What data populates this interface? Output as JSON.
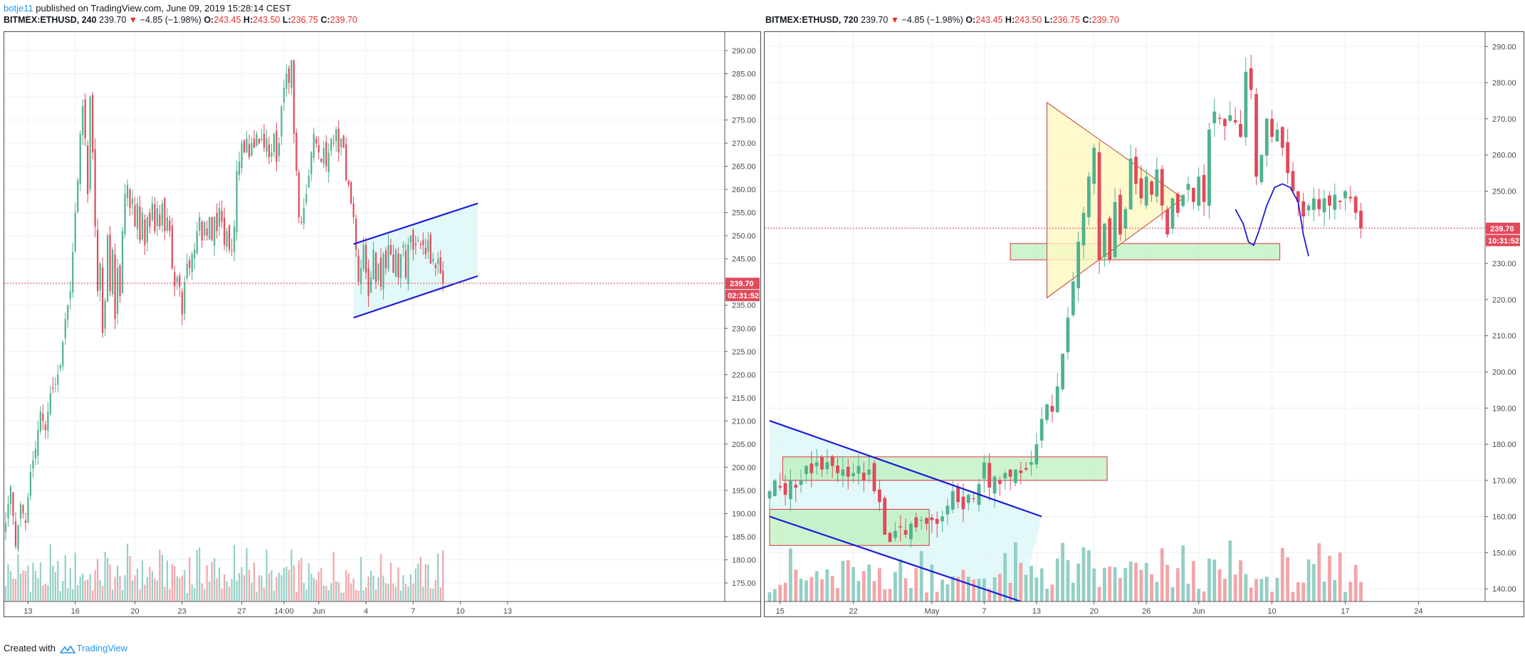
{
  "header": {
    "author": "botje11",
    "published_text": " published on TradingView.com, June 09, 2019 15:28:14 CEST"
  },
  "left_title": {
    "symbol": "BITMEX:ETHUSD, 240",
    "last": "239.70",
    "arrow": "▼",
    "change": "−4.85 (−1.98%)",
    "o_label": "O:",
    "o": "243.45",
    "h_label": "H:",
    "h": "243.50",
    "l_label": "L:",
    "l": "236.75",
    "c_label": "C:",
    "c": "239.70"
  },
  "right_title": {
    "symbol": "BITMEX:ETHUSD, 720",
    "last": "239.70",
    "arrow": "▼",
    "change": "−4.85 (−1.98%)",
    "o_label": "O:",
    "o": "243.45",
    "h_label": "H:",
    "h": "243.50",
    "l_label": "L:",
    "l": "236.75",
    "c_label": "C:",
    "c": "239.70"
  },
  "footer": {
    "created_with": "Created with",
    "brand": "TradingView"
  },
  "colors": {
    "up": "#4fb28f",
    "down": "#e2495a",
    "vol_up": "#93cfc5",
    "vol_down": "#f3a5a8",
    "drawing_blue": "#1c1cd6",
    "price_tag": "#e2495a",
    "grid": "#eef0f3"
  },
  "chart_data": [
    {
      "type": "candlestick",
      "symbol": "BITMEX:ETHUSD",
      "interval": "240",
      "ylim": [
        171,
        294
      ],
      "y_ticks": [
        "290.00",
        "285.00",
        "280.00",
        "275.00",
        "270.00",
        "265.00",
        "260.00",
        "255.00",
        "250.00",
        "245.00",
        "240.00",
        "235.00",
        "230.00",
        "225.00",
        "220.00",
        "215.00",
        "210.00",
        "205.00",
        "200.00",
        "195.00",
        "190.00",
        "185.00",
        "180.00",
        "175.00"
      ],
      "y_tick_values": [
        290,
        285,
        280,
        275,
        270,
        265,
        260,
        255,
        250,
        245,
        240,
        235,
        230,
        225,
        220,
        215,
        210,
        205,
        200,
        195,
        190,
        185,
        180,
        175
      ],
      "x_ticks": [
        "13",
        "16",
        "20",
        "23",
        "27",
        "14:00",
        "Jun",
        "4",
        "7",
        "10",
        "13"
      ],
      "x_tick_index": [
        9,
        28,
        52,
        71,
        95,
        112,
        126,
        145,
        164,
        183,
        202
      ],
      "last_price_label": "239.70",
      "countdown_label": "02:31:52",
      "last_price": 239.7,
      "trendlines": [
        {
          "x1": 140,
          "y1": 248.2,
          "x2": 190,
          "y2": 257
        },
        {
          "x1": 140,
          "y1": 232.3,
          "x2": 190,
          "y2": 241.3
        }
      ],
      "channel_fill": {
        "x1": 140,
        "x2": 190
      },
      "ohlc_anchors": [
        [
          0,
          188
        ],
        [
          2,
          196
        ],
        [
          4,
          183
        ],
        [
          6,
          192
        ],
        [
          8,
          188
        ],
        [
          10,
          199
        ],
        [
          12,
          204
        ],
        [
          14,
          212
        ],
        [
          16,
          208
        ],
        [
          18,
          216
        ],
        [
          20,
          218
        ],
        [
          22,
          222
        ],
        [
          24,
          232
        ],
        [
          26,
          238
        ],
        [
          28,
          255
        ],
        [
          29,
          262
        ],
        [
          30,
          272
        ],
        [
          31,
          278
        ],
        [
          32,
          271
        ],
        [
          33,
          259
        ],
        [
          34,
          280
        ],
        [
          35,
          268
        ],
        [
          36,
          252
        ],
        [
          37,
          238
        ],
        [
          38,
          244
        ],
        [
          39,
          229
        ],
        [
          40,
          236
        ],
        [
          41,
          250
        ],
        [
          42,
          238
        ],
        [
          43,
          247
        ],
        [
          44,
          232
        ],
        [
          45,
          243
        ],
        [
          46,
          237
        ],
        [
          47,
          251
        ],
        [
          48,
          259
        ],
        [
          49,
          261
        ],
        [
          50,
          256
        ],
        [
          51,
          258
        ],
        [
          52,
          252
        ],
        [
          53,
          257
        ],
        [
          54,
          249
        ],
        [
          55,
          255
        ],
        [
          56,
          248
        ],
        [
          57,
          254
        ],
        [
          58,
          252
        ],
        [
          59,
          257
        ],
        [
          60,
          251
        ],
        [
          61,
          256
        ],
        [
          62,
          252
        ],
        [
          63,
          257
        ],
        [
          64,
          251
        ],
        [
          65,
          254
        ],
        [
          66,
          251
        ],
        [
          67,
          243
        ],
        [
          68,
          239
        ],
        [
          69,
          241
        ],
        [
          70,
          239
        ],
        [
          71,
          233
        ],
        [
          72,
          240
        ],
        [
          73,
          244
        ],
        [
          74,
          243
        ],
        [
          75,
          246
        ],
        [
          76,
          247
        ],
        [
          77,
          251
        ],
        [
          78,
          254
        ],
        [
          79,
          249
        ],
        [
          80,
          253
        ],
        [
          81,
          250
        ],
        [
          82,
          254
        ],
        [
          83,
          249
        ],
        [
          84,
          254
        ],
        [
          85,
          251
        ],
        [
          86,
          256
        ],
        [
          87,
          253
        ],
        [
          88,
          248
        ],
        [
          89,
          251
        ],
        [
          90,
          247
        ],
        [
          91,
          247
        ],
        [
          92,
          252
        ],
        [
          93,
          264
        ],
        [
          94,
          266
        ],
        [
          95,
          270
        ],
        [
          96,
          268
        ],
        [
          97,
          271
        ],
        [
          98,
          267
        ],
        [
          99,
          270
        ],
        [
          100,
          269
        ],
        [
          101,
          272
        ],
        [
          102,
          270
        ],
        [
          103,
          271
        ],
        [
          104,
          269
        ],
        [
          105,
          271
        ],
        [
          106,
          267
        ],
        [
          107,
          268
        ],
        [
          108,
          272
        ],
        [
          109,
          266
        ],
        [
          110,
          270
        ],
        [
          111,
          278
        ],
        [
          112,
          282
        ],
        [
          113,
          285
        ],
        [
          114,
          283
        ],
        [
          115,
          288
        ],
        [
          116,
          272
        ],
        [
          117,
          264
        ],
        [
          118,
          254
        ],
        [
          119,
          253
        ],
        [
          120,
          256
        ],
        [
          121,
          259
        ],
        [
          122,
          263
        ],
        [
          123,
          268
        ],
        [
          124,
          272
        ],
        [
          125,
          270
        ],
        [
          126,
          268
        ],
        [
          127,
          266
        ],
        [
          128,
          269
        ],
        [
          129,
          265
        ],
        [
          130,
          268
        ],
        [
          131,
          271
        ],
        [
          132,
          270
        ],
        [
          133,
          273
        ],
        [
          134,
          268
        ],
        [
          135,
          271
        ],
        [
          136,
          269
        ],
        [
          137,
          262
        ],
        [
          138,
          261
        ],
        [
          139,
          257
        ],
        [
          140,
          254
        ],
        [
          141,
          247
        ],
        [
          142,
          240
        ],
        [
          143,
          243
        ],
        [
          144,
          248
        ],
        [
          145,
          242
        ],
        [
          146,
          237
        ],
        [
          147,
          241
        ],
        [
          148,
          247
        ],
        [
          149,
          240
        ],
        [
          150,
          244
        ],
        [
          151,
          239
        ],
        [
          152,
          246
        ],
        [
          153,
          243
        ],
        [
          154,
          248
        ],
        [
          155,
          246
        ],
        [
          156,
          242
        ],
        [
          157,
          247
        ],
        [
          158,
          241
        ],
        [
          159,
          246
        ],
        [
          160,
          248
        ],
        [
          161,
          241
        ],
        [
          162,
          248
        ],
        [
          163,
          250
        ],
        [
          164,
          247
        ],
        [
          165,
          248
        ],
        [
          166,
          249
        ],
        [
          167,
          248
        ],
        [
          168,
          248
        ],
        [
          169,
          246
        ],
        [
          170,
          249
        ],
        [
          171,
          244
        ],
        [
          172,
          245
        ],
        [
          173,
          243
        ],
        [
          174,
          245
        ],
        [
          175,
          242
        ],
        [
          176,
          239.7
        ]
      ]
    },
    {
      "type": "candlestick",
      "symbol": "BITMEX:ETHUSD",
      "interval": "720",
      "ylim": [
        136.5,
        294
      ],
      "y_ticks": [
        "290.00",
        "280.00",
        "270.00",
        "260.00",
        "250.00",
        "240.00",
        "230.00",
        "220.00",
        "210.00",
        "200.00",
        "190.00",
        "180.00",
        "170.00",
        "160.00",
        "150.00",
        "140.00"
      ],
      "y_tick_values": [
        290,
        280,
        270,
        260,
        250,
        240,
        230,
        220,
        210,
        200,
        190,
        180,
        170,
        160,
        150,
        140
      ],
      "x_ticks": [
        "15",
        "22",
        "May",
        "7",
        "13",
        "20",
        "26",
        "Jun",
        "10",
        "17",
        "24"
      ],
      "x_tick_index": [
        2,
        16,
        31,
        41,
        51,
        62,
        72,
        82,
        96,
        110,
        124
      ],
      "last_price_label": "239.70",
      "countdown_label": "10:31:52",
      "last_price": 239.7,
      "boxes": [
        {
          "x1": 2.5,
          "x2": 64.5,
          "y1": 170,
          "y2": 176.5
        },
        {
          "x1": 0,
          "x2": 30.5,
          "y1": 152,
          "y2": 162
        },
        {
          "x1": 46,
          "x2": 97.5,
          "y1": 231,
          "y2": 235.5
        }
      ],
      "triangle": [
        [
          53,
          274.5
        ],
        [
          79,
          248
        ],
        [
          53,
          220.5
        ]
      ],
      "trendlines": [
        {
          "x1": 0,
          "y1": 186.5,
          "x2": 52,
          "y2": 160
        },
        {
          "x1": 0,
          "y1": 160,
          "x2": 48,
          "y2": 136.5
        }
      ],
      "hand_drawn_projection": [
        [
          89,
          245
        ],
        [
          90.5,
          241
        ],
        [
          91.5,
          236
        ],
        [
          92.5,
          235
        ],
        [
          93.5,
          239
        ],
        [
          95,
          246
        ],
        [
          96.5,
          251
        ],
        [
          98,
          252
        ],
        [
          99.5,
          251
        ],
        [
          101,
          247
        ],
        [
          102,
          238
        ],
        [
          103,
          232
        ]
      ],
      "ohlc_anchors": [
        [
          0,
          167
        ],
        [
          1,
          170
        ],
        [
          2,
          168
        ],
        [
          3,
          166
        ],
        [
          4,
          170
        ],
        [
          5,
          168
        ],
        [
          6,
          170
        ],
        [
          7,
          174
        ],
        [
          8,
          172
        ],
        [
          9,
          175
        ],
        [
          10,
          173
        ],
        [
          11,
          175
        ],
        [
          12,
          174
        ],
        [
          13,
          172
        ],
        [
          14,
          173
        ],
        [
          15,
          171
        ],
        [
          16,
          172
        ],
        [
          17,
          174
        ],
        [
          18,
          170
        ],
        [
          19,
          173
        ],
        [
          20,
          167
        ],
        [
          21,
          164
        ],
        [
          22,
          155
        ],
        [
          23,
          153
        ],
        [
          24,
          156
        ],
        [
          25,
          157
        ],
        [
          26,
          155
        ],
        [
          27,
          158
        ],
        [
          28,
          157
        ],
        [
          29,
          159
        ],
        [
          30,
          158
        ],
        [
          31,
          159
        ],
        [
          32,
          158
        ],
        [
          33,
          160
        ],
        [
          34,
          163
        ],
        [
          35,
          167
        ],
        [
          36,
          164
        ],
        [
          37,
          162
        ],
        [
          38,
          166
        ],
        [
          39,
          165
        ],
        [
          40,
          169
        ],
        [
          41,
          175
        ],
        [
          42,
          168
        ],
        [
          43,
          171
        ],
        [
          44,
          169
        ],
        [
          45,
          172
        ],
        [
          46,
          171
        ],
        [
          47,
          173
        ],
        [
          48,
          172
        ],
        [
          49,
          173
        ],
        [
          50,
          175
        ],
        [
          51,
          180
        ],
        [
          52,
          187
        ],
        [
          53,
          191
        ],
        [
          54,
          189
        ],
        [
          55,
          196
        ],
        [
          56,
          205
        ],
        [
          57,
          215
        ],
        [
          58,
          225
        ],
        [
          59,
          236
        ],
        [
          60,
          244
        ],
        [
          61,
          254
        ],
        [
          62,
          262
        ],
        [
          63,
          231
        ],
        [
          64,
          241
        ],
        [
          65,
          231
        ],
        [
          66,
          247
        ],
        [
          67,
          238
        ],
        [
          68,
          245
        ],
        [
          69,
          259
        ],
        [
          70,
          252
        ],
        [
          71,
          248
        ],
        [
          72,
          254
        ],
        [
          73,
          249
        ],
        [
          74,
          256
        ],
        [
          75,
          246
        ],
        [
          76,
          238
        ],
        [
          77,
          248
        ],
        [
          78,
          244
        ],
        [
          79,
          249
        ],
        [
          80,
          252
        ],
        [
          81,
          247
        ],
        [
          82,
          254
        ],
        [
          83,
          247
        ],
        [
          84,
          267
        ],
        [
          85,
          272
        ],
        [
          86,
          270
        ],
        [
          87,
          268
        ],
        [
          88,
          271
        ],
        [
          89,
          269
        ],
        [
          90,
          265
        ],
        [
          91,
          283
        ],
        [
          92,
          278
        ],
        [
          93,
          254
        ],
        [
          94,
          260
        ],
        [
          95,
          270
        ],
        [
          96,
          265
        ],
        [
          97,
          267
        ],
        [
          98,
          262
        ],
        [
          99,
          255
        ],
        [
          100,
          250
        ],
        [
          101,
          247
        ],
        [
          102,
          243
        ],
        [
          103,
          246
        ],
        [
          104,
          248
        ],
        [
          105,
          245
        ],
        [
          106,
          248
        ],
        [
          107,
          246
        ],
        [
          108,
          249
        ],
        [
          109,
          247
        ],
        [
          110,
          250
        ],
        [
          111,
          248
        ],
        [
          112,
          244
        ],
        [
          113,
          239.7
        ]
      ]
    }
  ]
}
